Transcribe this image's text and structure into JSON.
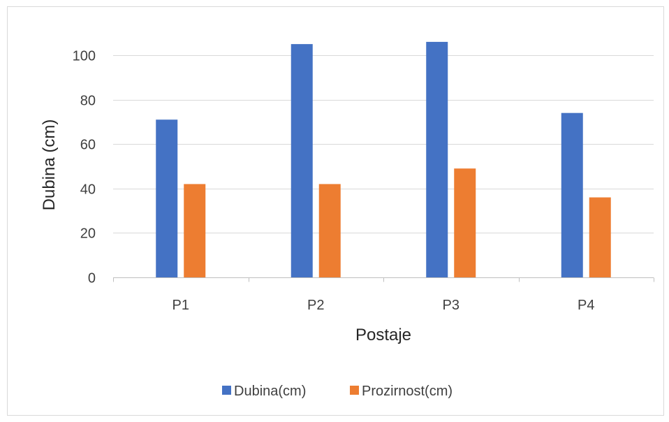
{
  "chart_data": {
    "type": "bar",
    "title": "",
    "xlabel": "Postaje",
    "ylabel": "Dubina (cm)",
    "categories": [
      "P1",
      "P2",
      "P3",
      "P4"
    ],
    "series": [
      {
        "name": "Dubina(cm)",
        "values": [
          71,
          105,
          106,
          74
        ],
        "color": "#4472c4"
      },
      {
        "name": "Prozirnost(cm)",
        "values": [
          42,
          42,
          49,
          36
        ],
        "color": "#ed7d31"
      }
    ],
    "ylim": [
      0,
      110
    ],
    "yticks": [
      0,
      20,
      40,
      60,
      80,
      100
    ],
    "grid": true,
    "legend_position": "bottom"
  }
}
